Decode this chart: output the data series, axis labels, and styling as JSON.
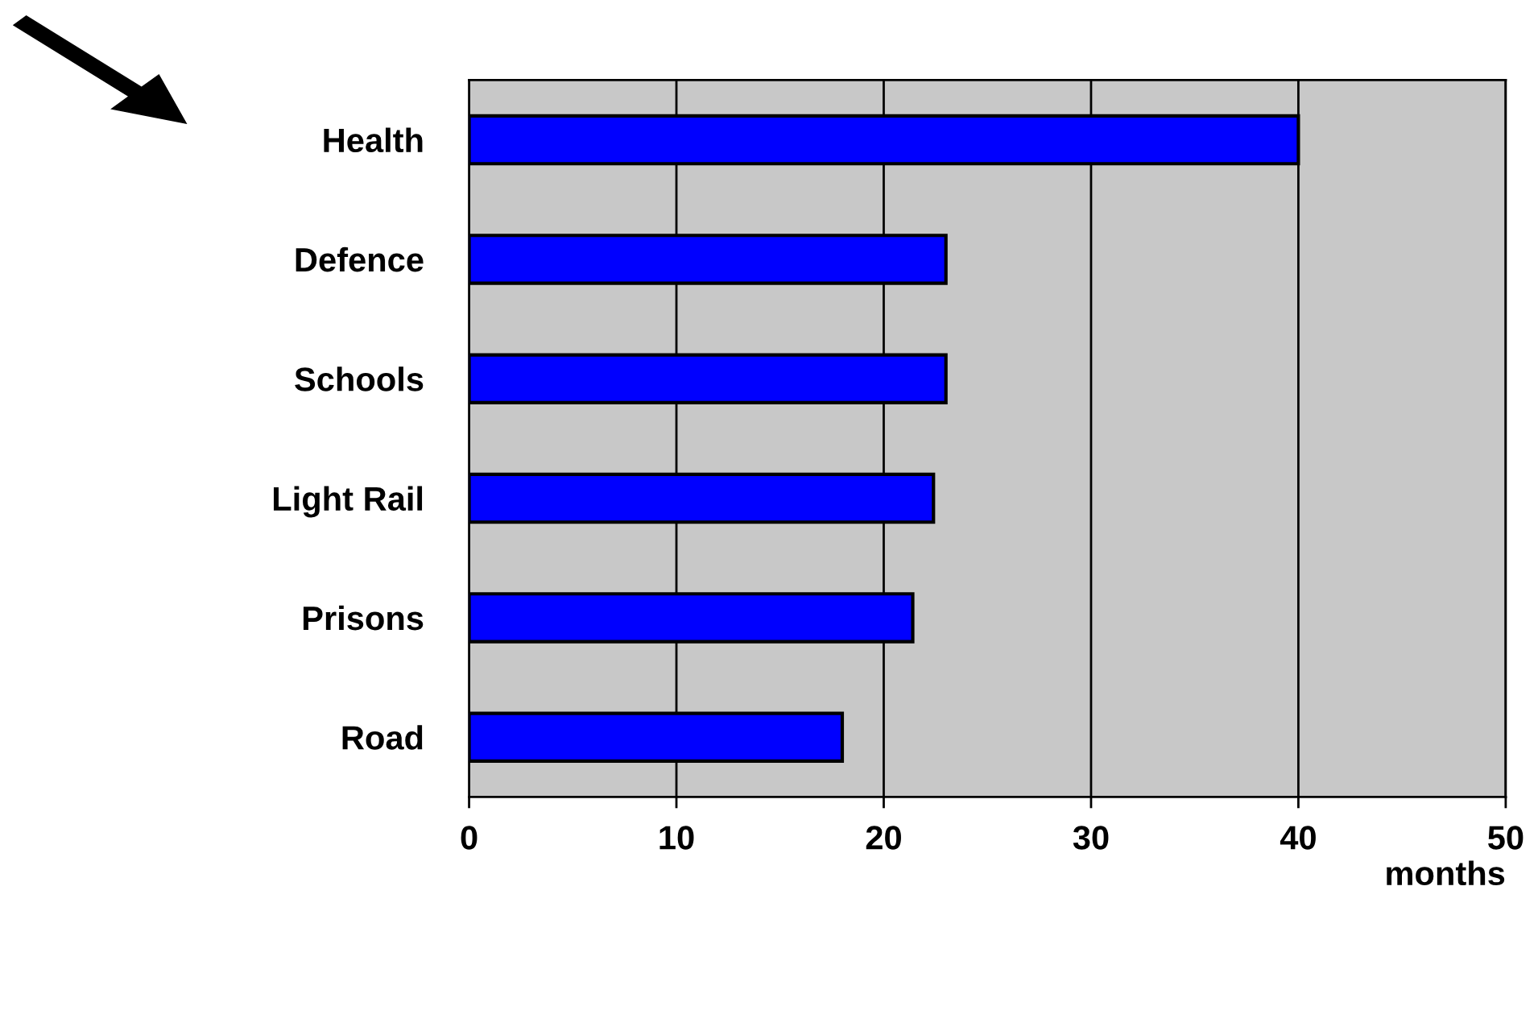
{
  "chart_data": {
    "type": "bar",
    "orientation": "horizontal",
    "categories": [
      "Health",
      "Defence",
      "Schools",
      "Light Rail",
      "Prisons",
      "Road"
    ],
    "values": [
      40,
      23,
      23,
      22.4,
      21.4,
      18
    ],
    "color": "#0000ff",
    "xlabel": "months",
    "xlim": [
      0,
      50
    ],
    "xticks": [
      0,
      10,
      20,
      30,
      40,
      50
    ],
    "grid": "x"
  }
}
